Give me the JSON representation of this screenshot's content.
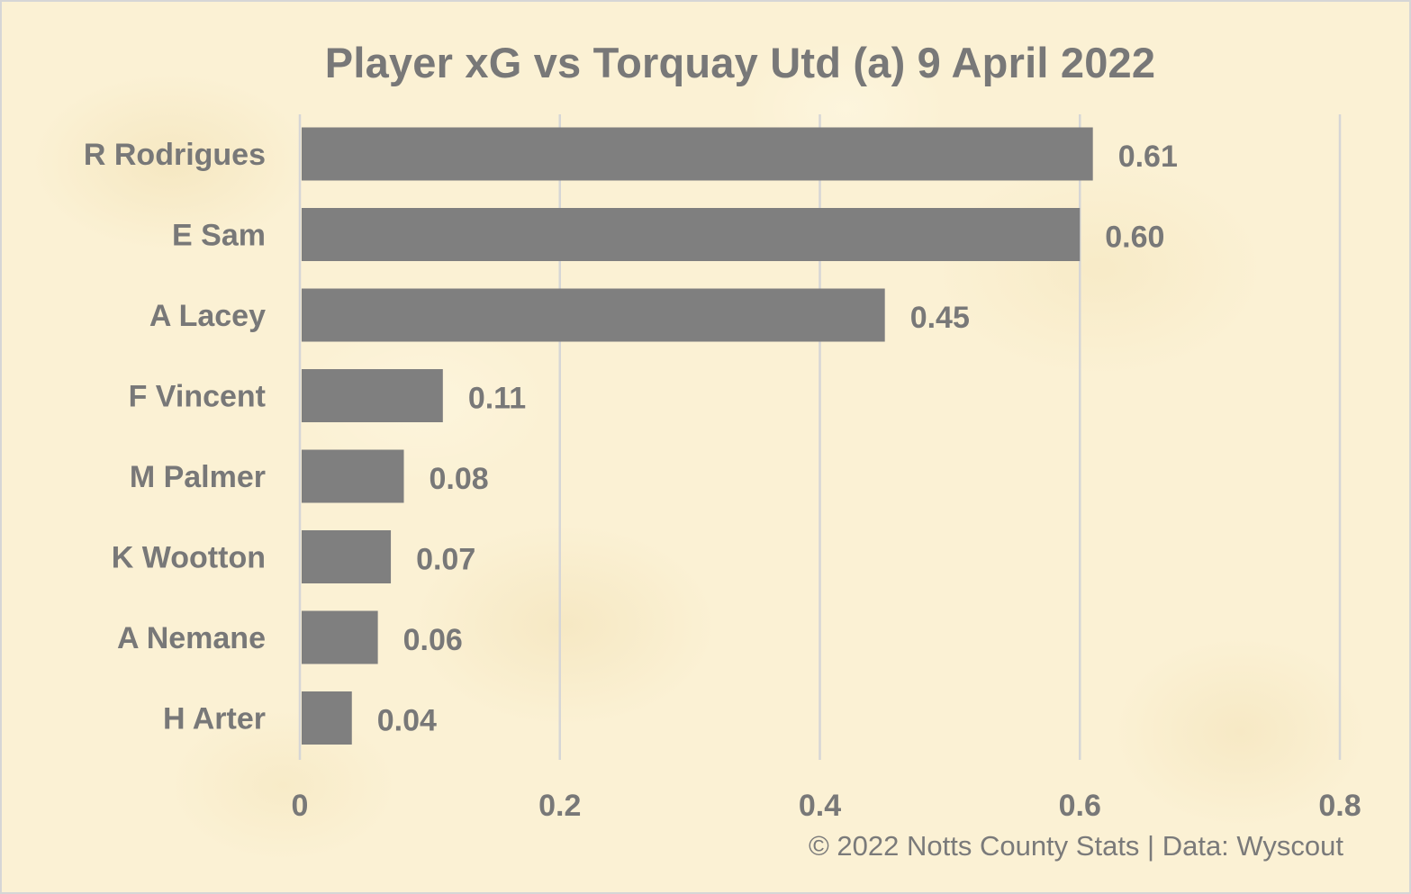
{
  "chart_data": {
    "type": "bar",
    "orientation": "horizontal",
    "title": "Player xG vs Torquay Utd (a) 9 April 2022",
    "categories": [
      "R Rodrigues",
      "E Sam",
      "A Lacey",
      "F Vincent",
      "M Palmer",
      "K Wootton",
      "A Nemane",
      "H Arter"
    ],
    "values": [
      0.61,
      0.6,
      0.45,
      0.11,
      0.08,
      0.07,
      0.06,
      0.04
    ],
    "value_labels": [
      "0.61",
      "0.60",
      "0.45",
      "0.11",
      "0.08",
      "0.07",
      "0.06",
      "0.04"
    ],
    "xlim": [
      0,
      0.8
    ],
    "x_ticks": [
      0,
      0.2,
      0.4,
      0.6,
      0.8
    ],
    "x_tick_labels": [
      "0",
      "0.2",
      "0.4",
      "0.6",
      "0.8"
    ],
    "xlabel": "",
    "ylabel": "",
    "grid": "vertical",
    "legend": "none",
    "colors": {
      "bar": "#7f7f7f",
      "text": "#787878",
      "grid": "#d6d6d6",
      "background": "#fbf1d4"
    }
  },
  "footer": {
    "credit": "© 2022 Notts County Stats | Data: Wyscout"
  }
}
